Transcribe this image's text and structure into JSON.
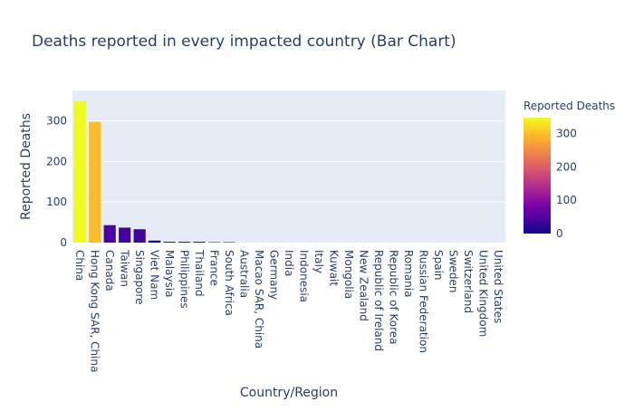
{
  "chart_data": {
    "type": "bar",
    "title": "Deaths reported in every impacted country (Bar Chart)",
    "xlabel": "Country/Region",
    "ylabel": "Reported Deaths",
    "ylim": [
      0,
      375
    ],
    "yticks": [
      0,
      100,
      200,
      300
    ],
    "grid": true,
    "legend": "colorbar-right",
    "colorbar": {
      "title": "Reported Deaths",
      "range": [
        0,
        348
      ],
      "ticks": [
        0,
        100,
        200,
        300
      ],
      "colorscale": [
        "#0d0887",
        "#46039f",
        "#7201a8",
        "#9c179e",
        "#bd3786",
        "#d8576b",
        "#ed7953",
        "#fb9f3a",
        "#fdca26",
        "#f0f921"
      ]
    },
    "categories": [
      "China",
      "Hong Kong SAR, China",
      "Canada",
      "Taiwan",
      "Singapore",
      "Viet Nam",
      "Malaysia",
      "Philippines",
      "Thailand",
      "France",
      "South Africa",
      "Australia",
      "Macao SAR, China",
      "Germany",
      "India",
      "Indonesia",
      "Italy",
      "Kuwait",
      "Mongolia",
      "New Zealand",
      "Republic of Ireland",
      "Republic of Korea",
      "Romania",
      "Russian Federation",
      "Spain",
      "Sweden",
      "Switzerland",
      "United Kingdom",
      "United States"
    ],
    "values": [
      348,
      298,
      43,
      37,
      33,
      5,
      2,
      2,
      2,
      1,
      1,
      0,
      0,
      0,
      0,
      0,
      0,
      0,
      0,
      0,
      0,
      0,
      0,
      0,
      0,
      0,
      0,
      0,
      0
    ]
  }
}
